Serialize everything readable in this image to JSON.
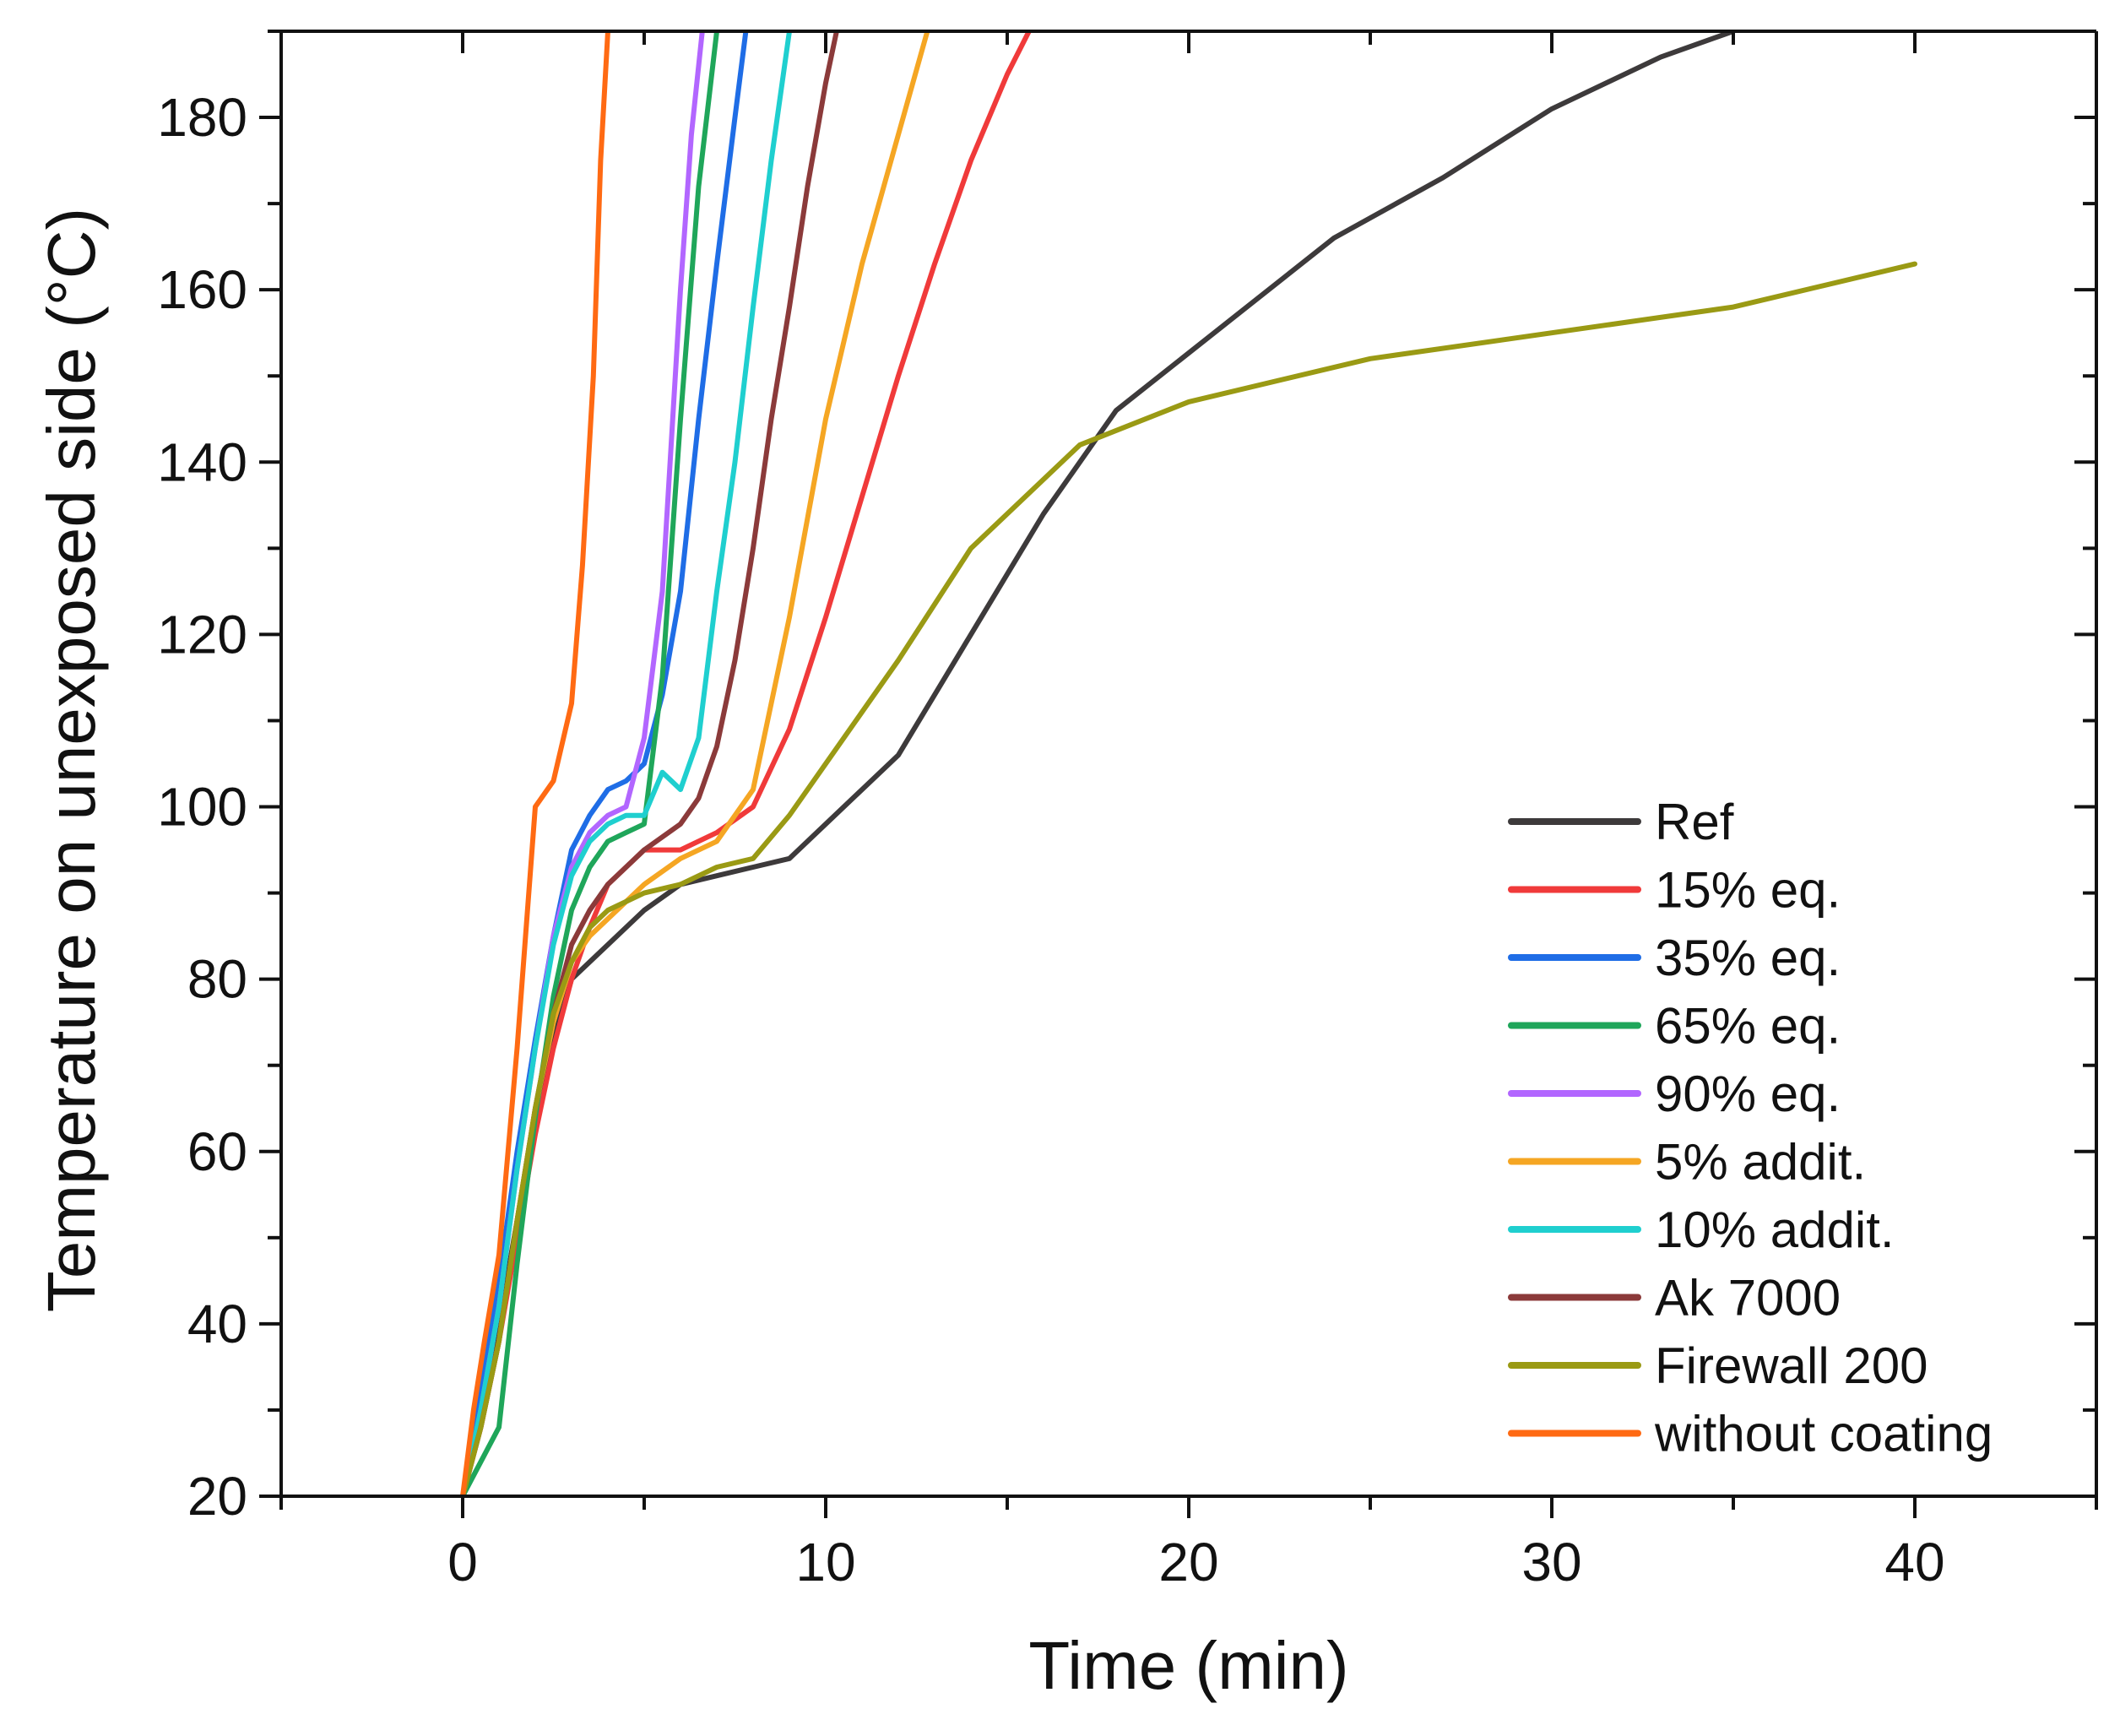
{
  "chart_data": {
    "type": "line",
    "title": "",
    "xlabel": "Time (min)",
    "ylabel": "Temperature on unexposed side (°C)",
    "xlim": [
      -5,
      45
    ],
    "ylim": [
      20,
      190
    ],
    "xticks": [
      0,
      10,
      20,
      30,
      40
    ],
    "yticks": [
      20,
      40,
      60,
      80,
      100,
      120,
      140,
      160,
      180
    ],
    "grid": false,
    "legend_position": "bottom-right",
    "series": [
      {
        "name": "Ref",
        "color": "#3d3a3b",
        "x": [
          0,
          0.5,
          1,
          1.5,
          2,
          2.5,
          3,
          4,
          5,
          6,
          7,
          8,
          9,
          10,
          12,
          14,
          16,
          18,
          21,
          24,
          27,
          30,
          33,
          35
        ],
        "y": [
          20,
          30,
          40,
          52,
          64,
          73,
          80,
          84,
          88,
          91,
          92,
          93,
          94,
          98,
          106,
          120,
          134,
          146,
          156,
          166,
          173,
          181,
          187,
          190
        ]
      },
      {
        "name": "15% eq.",
        "color": "#f03a3a",
        "x": [
          0,
          0.5,
          1,
          1.5,
          2,
          2.5,
          3,
          3.5,
          4,
          5,
          6,
          7,
          8,
          9,
          10,
          11,
          12,
          13,
          14,
          15,
          15.6
        ],
        "y": [
          20,
          28,
          38,
          50,
          62,
          72,
          80,
          86,
          91,
          95,
          95,
          97,
          100,
          109,
          122,
          136,
          150,
          163,
          175,
          185,
          190
        ]
      },
      {
        "name": "35% eq.",
        "color": "#1f6de6",
        "x": [
          0,
          0.5,
          1,
          1.5,
          2,
          2.5,
          3,
          3.5,
          4,
          4.5,
          5,
          5.5,
          6,
          6.5,
          7,
          7.5,
          7.8
        ],
        "y": [
          20,
          32,
          45,
          60,
          73,
          85,
          95,
          99,
          102,
          103,
          105,
          113,
          125,
          145,
          163,
          180,
          190
        ]
      },
      {
        "name": "65% eq.",
        "color": "#1fa65a",
        "x": [
          0,
          0.5,
          1,
          1.5,
          2,
          2.5,
          3,
          3.5,
          4,
          4.5,
          5,
          5.5,
          6,
          6.5,
          7
        ],
        "y": [
          20,
          24,
          28,
          47,
          64,
          78,
          88,
          93,
          96,
          97,
          98,
          115,
          145,
          172,
          190
        ]
      },
      {
        "name": "90% eq.",
        "color": "#b266ff",
        "x": [
          0,
          0.5,
          1,
          1.5,
          2,
          2.5,
          3,
          3.5,
          4,
          4.5,
          5,
          5.5,
          6,
          6.3,
          6.6
        ],
        "y": [
          20,
          30,
          42,
          58,
          72,
          85,
          93,
          97,
          99,
          100,
          108,
          125,
          160,
          178,
          190
        ]
      },
      {
        "name": "5% addit.",
        "color": "#f5a623",
        "x": [
          0,
          0.5,
          1,
          1.5,
          2,
          2.5,
          3,
          3.5,
          4,
          4.5,
          5,
          6,
          7,
          8,
          9,
          10,
          11,
          12,
          12.8
        ],
        "y": [
          20,
          28,
          38,
          52,
          65,
          75,
          82,
          85,
          87,
          89,
          91,
          94,
          96,
          102,
          122,
          145,
          163,
          178,
          190
        ]
      },
      {
        "name": "10% addit.",
        "color": "#1fcfcf",
        "x": [
          0,
          0.5,
          1,
          1.5,
          2,
          2.5,
          3,
          3.5,
          4,
          4.5,
          5,
          5.5,
          6,
          6.5,
          7,
          7.5,
          8,
          8.5,
          9
        ],
        "y": [
          20,
          30,
          42,
          58,
          72,
          84,
          92,
          96,
          98,
          99,
          99,
          104,
          102,
          108,
          125,
          140,
          158,
          175,
          190
        ]
      },
      {
        "name": "Ak 7000",
        "color": "#8b3a3a",
        "x": [
          0,
          0.5,
          1,
          1.5,
          2,
          2.5,
          3,
          3.5,
          4,
          5,
          6,
          6.5,
          7,
          7.5,
          8,
          8.5,
          9,
          9.5,
          10,
          10.3
        ],
        "y": [
          20,
          28,
          38,
          52,
          65,
          76,
          84,
          88,
          91,
          95,
          98,
          101,
          107,
          117,
          130,
          145,
          158,
          172,
          184,
          190
        ]
      },
      {
        "name": "Firewall 200",
        "color": "#9a9a14",
        "x": [
          0,
          0.5,
          1,
          1.5,
          2,
          2.5,
          3,
          3.5,
          4,
          5,
          6,
          7,
          8,
          9,
          10,
          12,
          14,
          17,
          20,
          25,
          30,
          35,
          40
        ],
        "y": [
          20,
          28,
          38,
          52,
          65,
          76,
          82,
          86,
          88,
          90,
          91,
          93,
          94,
          99,
          105,
          117,
          130,
          142,
          147,
          152,
          155,
          158,
          163
        ]
      },
      {
        "name": "without coating",
        "color": "#ff6a13",
        "x": [
          0,
          0.3,
          0.6,
          1,
          1.5,
          2,
          2.5,
          3,
          3.3,
          3.6,
          3.8,
          4
        ],
        "y": [
          20,
          30,
          38,
          48,
          72,
          100,
          103,
          112,
          128,
          150,
          175,
          190
        ]
      }
    ]
  }
}
